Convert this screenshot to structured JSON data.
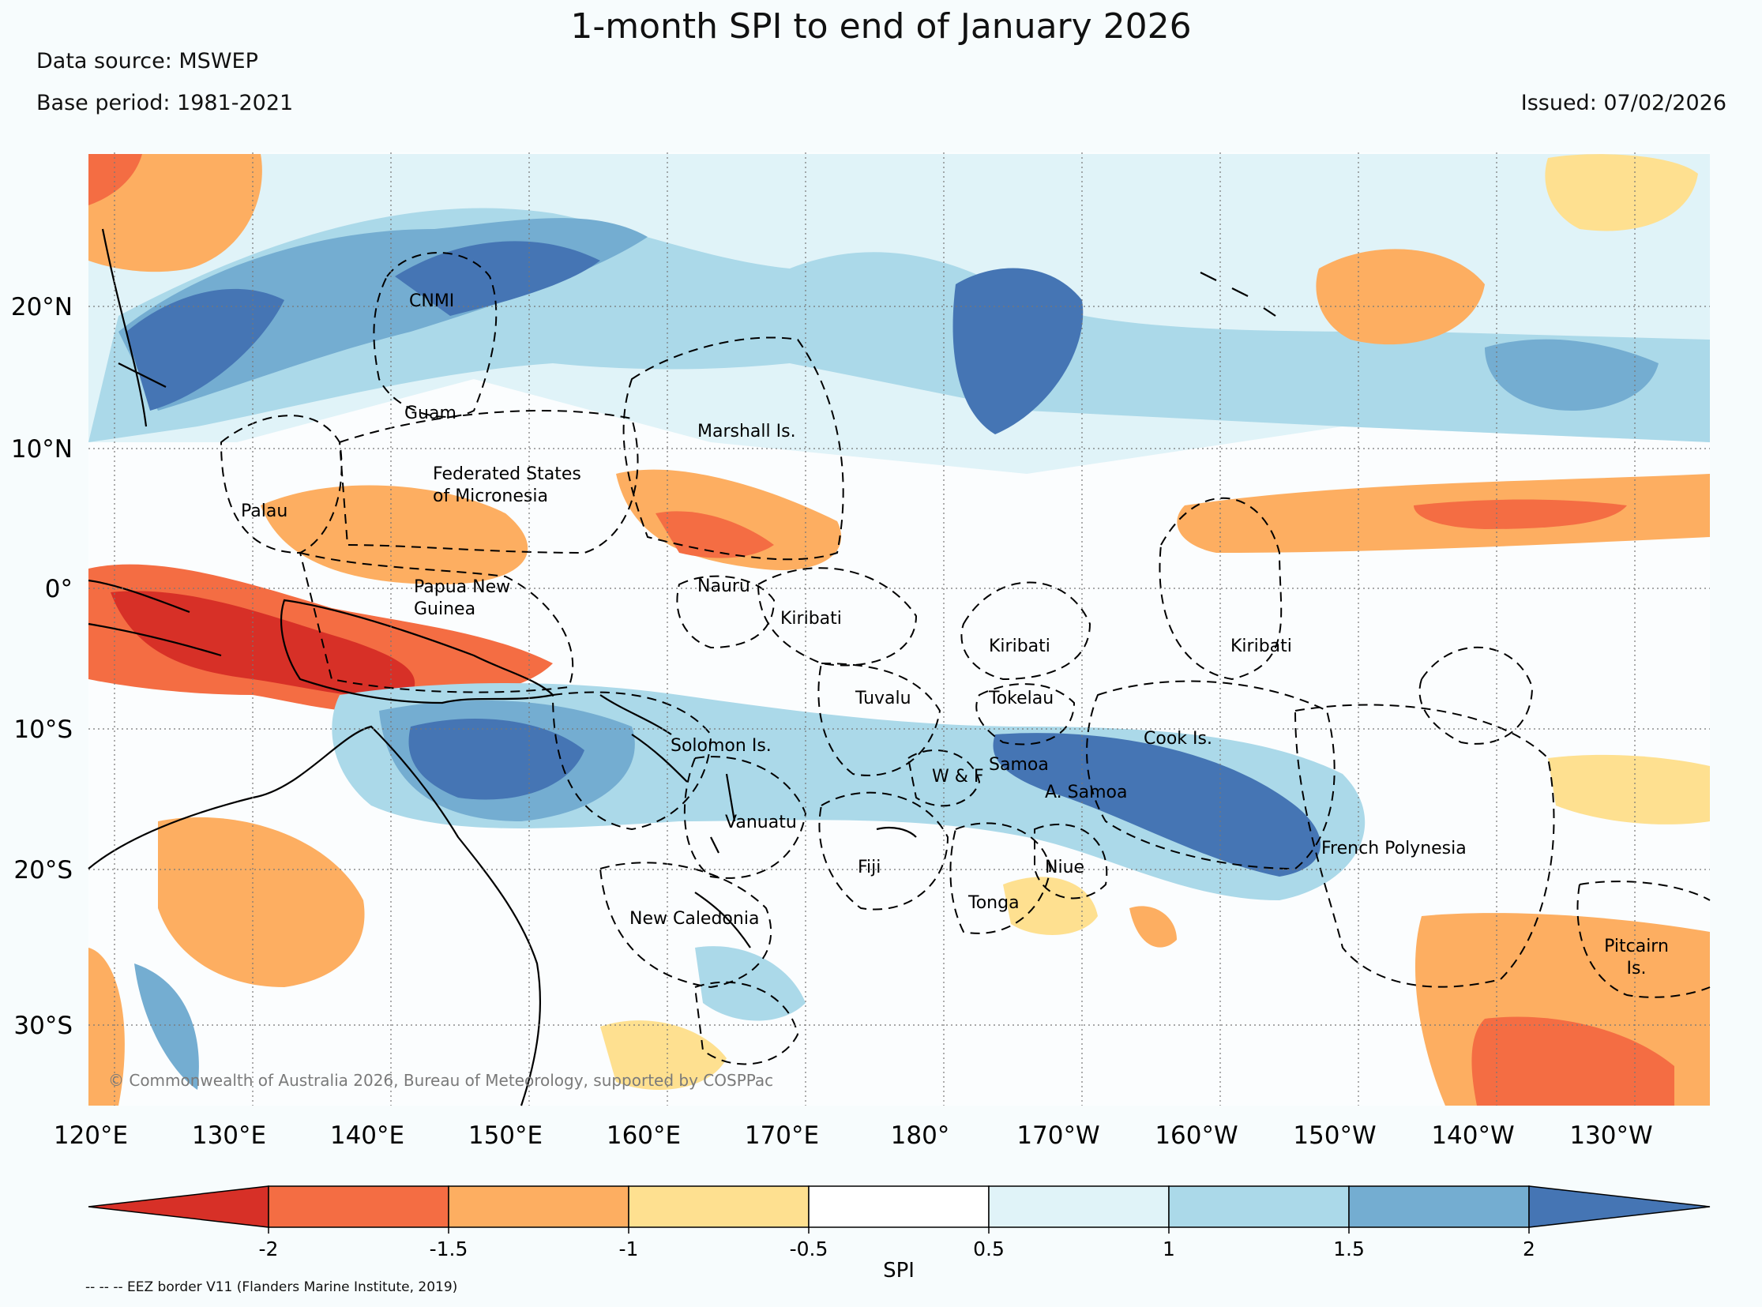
{
  "header": {
    "title": "1-month SPI to end of January 2026",
    "data_source": "Data source: MSWEP",
    "base_period": "Base period: 1981-2021",
    "issued": "Issued: 07/02/2026"
  },
  "map": {
    "lat_labels": [
      "20°N",
      "10°N",
      "0°",
      "10°S",
      "20°S",
      "30°S"
    ],
    "lon_labels": [
      "120°E",
      "130°E",
      "140°E",
      "150°E",
      "160°E",
      "170°E",
      "180°",
      "170°W",
      "160°W",
      "150°W",
      "140°W",
      "130°W"
    ],
    "places": [
      {
        "id": "cnmi",
        "lines": [
          "CNMI"
        ]
      },
      {
        "id": "guam",
        "lines": [
          "Guam"
        ]
      },
      {
        "id": "marshall",
        "lines": [
          "Marshall Is."
        ]
      },
      {
        "id": "fsm",
        "lines": [
          "Federated States",
          "of Micronesia"
        ]
      },
      {
        "id": "palau",
        "lines": [
          "Palau"
        ]
      },
      {
        "id": "png",
        "lines": [
          "Papua New",
          "Guinea"
        ]
      },
      {
        "id": "nauru",
        "lines": [
          "Nauru"
        ]
      },
      {
        "id": "kiribati-w",
        "lines": [
          "Kiribati"
        ]
      },
      {
        "id": "kiribati-c",
        "lines": [
          "Kiribati"
        ]
      },
      {
        "id": "kiribati-e",
        "lines": [
          "Kiribati"
        ]
      },
      {
        "id": "tuvalu",
        "lines": [
          "Tuvalu"
        ]
      },
      {
        "id": "tokelau",
        "lines": [
          "Tokelau"
        ]
      },
      {
        "id": "cook",
        "lines": [
          "Cook Is."
        ]
      },
      {
        "id": "solomon",
        "lines": [
          "Solomon Is."
        ]
      },
      {
        "id": "samoa",
        "lines": [
          "Samoa"
        ]
      },
      {
        "id": "wf",
        "lines": [
          "W & F"
        ]
      },
      {
        "id": "asamoa",
        "lines": [
          "A. Samoa"
        ]
      },
      {
        "id": "vanuatu",
        "lines": [
          "Vanuatu"
        ]
      },
      {
        "id": "fiji",
        "lines": [
          "Fiji"
        ]
      },
      {
        "id": "niue",
        "lines": [
          "Niue"
        ]
      },
      {
        "id": "tonga",
        "lines": [
          "Tonga"
        ]
      },
      {
        "id": "frenchpoly",
        "lines": [
          "French Polynesia"
        ]
      },
      {
        "id": "newcal",
        "lines": [
          "New Caledonia"
        ]
      },
      {
        "id": "pitcairn",
        "lines": [
          "Pitcairn",
          "Is."
        ]
      }
    ],
    "copyright": "© Commonwealth of Australia 2026, Bureau of Meteorology, supported by COSPPac"
  },
  "colorbar": {
    "label": "SPI",
    "ticks": [
      "-2",
      "-1.5",
      "-1",
      "-0.5",
      "0.5",
      "1",
      "1.5",
      "2"
    ],
    "colors": [
      "#d73027",
      "#f46d43",
      "#fdae61",
      "#fee090",
      "#ffffff",
      "#e0f3f8",
      "#abd9e9",
      "#74add1",
      "#4575b4"
    ]
  },
  "footer": {
    "eez_note": "-- -- -- EEZ border V11 (Flanders Marine Institute, 2019)"
  }
}
